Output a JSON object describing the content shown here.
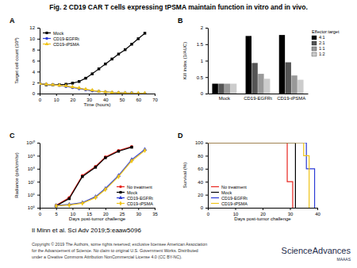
{
  "title": "Fig. 2 CD19 CAR T cells expressing tPSMA maintain function in vitro and in vivo.",
  "citation": "Il Minn et al. Sci Adv 2019;5:eaaw5096",
  "copyright": [
    "Copyright © 2019 The Authors, some rights reserved; exclusive licensee American Association",
    "for the Advancement of Science. No claim to original U.S. Government Works. Distributed",
    "under a Creative Commons Attribution NonCommercial License 4.0 (CC BY-NC)."
  ],
  "journal": "ScienceAdvances",
  "publisher": "MAAAS",
  "chart_data": [
    {
      "type": "line",
      "title": "A",
      "xlabel": "Time (hours)",
      "ylabel": "Target cell count (10⁴)",
      "x": [
        0,
        4,
        8,
        12,
        16,
        20,
        24,
        28,
        32,
        36,
        40,
        44,
        48,
        52,
        56,
        60,
        64
      ],
      "xlim": [
        0,
        70
      ],
      "xticks": [
        0,
        10,
        20,
        30,
        40,
        50,
        60,
        70
      ],
      "ylim": [
        0,
        12
      ],
      "yticks": [
        0,
        2,
        4,
        6,
        8,
        10,
        12
      ],
      "legend": "top-left",
      "series": [
        {
          "name": "Mock",
          "color": "#000000",
          "marker": "square",
          "values": [
            1.8,
            1.6,
            1.6,
            1.6,
            1.7,
            1.9,
            2.2,
            2.8,
            3.6,
            4.5,
            5.4,
            6.3,
            7.2,
            8.0,
            9.0,
            10.0,
            11.0
          ]
        },
        {
          "name": "CD19-EGFRt",
          "color": "#2a3ad6",
          "marker": "circle",
          "values": [
            1.8,
            1.7,
            1.6,
            1.5,
            1.3,
            1.1,
            0.9,
            0.7,
            0.5,
            0.4,
            0.3,
            0.2,
            0.15,
            0.1,
            0.1,
            0.05,
            0.05
          ]
        },
        {
          "name": "CD19-tPSMA",
          "color": "#f0c419",
          "marker": "triangle",
          "values": [
            1.8,
            1.7,
            1.6,
            1.5,
            1.4,
            1.2,
            1.0,
            0.8,
            0.6,
            0.4,
            0.3,
            0.2,
            0.15,
            0.1,
            0.05,
            0.05,
            0.05
          ]
        }
      ]
    },
    {
      "type": "bar",
      "title": "B",
      "ylabel": "Kill index (1/AUC)",
      "categories": [
        "Mock",
        "CD19-EGFRt",
        "CD19-tPSMA"
      ],
      "ylim": [
        0,
        2
      ],
      "yticks": [
        0,
        0.5,
        1,
        1.5,
        2
      ],
      "legend": "top-right",
      "annotations": [
        "Effector:target"
      ],
      "series": [
        {
          "name": "4:1",
          "color": "#000000",
          "values": [
            0.3,
            1.75,
            1.78
          ]
        },
        {
          "name": "2:1",
          "color": "#555555",
          "values": [
            0.3,
            0.93,
            0.95
          ]
        },
        {
          "name": "1:1",
          "color": "#999999",
          "values": [
            0.3,
            0.6,
            0.55
          ]
        },
        {
          "name": "1:2",
          "color": "#cccccc",
          "values": [
            0.3,
            0.45,
            0.42
          ]
        }
      ]
    },
    {
      "type": "line",
      "title": "C",
      "xlabel": "Days post-tumor challenge",
      "ylabel": "Radiance (p/s/cm²/sr)",
      "log": "y",
      "x": [
        5,
        9,
        13,
        17,
        20,
        24,
        28,
        32
      ],
      "xlim": [
        0,
        35
      ],
      "xticks": [
        0,
        5,
        10,
        15,
        20,
        25,
        30,
        35
      ],
      "ylim": [
        100000,
        10000000000
      ],
      "yticks": [
        {
          "value": 100000,
          "label": "10⁵"
        },
        {
          "value": 1000000,
          "label": "10⁶"
        },
        {
          "value": 10000000,
          "label": "10⁷"
        },
        {
          "value": 100000000,
          "label": "10⁸"
        },
        {
          "value": 1000000000,
          "label": "10⁹"
        },
        {
          "value": 10000000000,
          "label": "10¹⁰"
        }
      ],
      "legend": "bottom-right",
      "series": [
        {
          "name": "No treatment",
          "color": "#e8261f",
          "marker": "circle",
          "values": [
            150000,
            600000,
            30000000,
            150000000,
            800000000,
            2500000000,
            5000000000,
            null
          ]
        },
        {
          "name": "Mock",
          "color": "#000000",
          "marker": "square",
          "values": [
            140000,
            500000,
            25000000,
            130000000,
            700000000,
            2200000000,
            4500000000,
            null
          ]
        },
        {
          "name": "CD19-EGFRt",
          "color": "#2a3ad6",
          "marker": "triangle",
          "values": [
            150000,
            180000,
            250000,
            700000,
            3000000,
            30000000,
            500000000,
            3000000000
          ]
        },
        {
          "name": "CD19-tPSMA",
          "color": "#f0c419",
          "marker": "diamond",
          "values": [
            140000,
            160000,
            220000,
            600000,
            2500000,
            25000000,
            400000000,
            2500000000
          ]
        }
      ]
    },
    {
      "type": "step",
      "title": "D",
      "xlabel": "Days post-tumor challenge",
      "ylabel": "Survival (%)",
      "x": [
        0,
        29,
        31,
        32,
        35,
        36,
        37,
        39,
        40
      ],
      "xlim": [
        0,
        40
      ],
      "xticks": [
        0,
        10,
        20,
        30,
        40
      ],
      "ylim": [
        0,
        100
      ],
      "yticks": [
        0,
        20,
        40,
        60,
        80,
        100
      ],
      "legend": "bottom-left",
      "series": [
        {
          "name": "No treatment",
          "color": "#e8261f",
          "values": [
            100,
            40,
            0,
            null,
            null,
            null,
            null,
            null,
            null
          ]
        },
        {
          "name": "Mock",
          "color": "#000000",
          "values": [
            100,
            100,
            100,
            0,
            null,
            null,
            null,
            null,
            null
          ]
        },
        {
          "name": "CD19-EGFRt",
          "color": "#2a3ad6",
          "values": [
            100,
            100,
            100,
            100,
            100,
            60,
            60,
            0,
            null
          ]
        },
        {
          "name": "CD19-tPSMA",
          "color": "#f0c419",
          "values": [
            100,
            100,
            100,
            100,
            80,
            80,
            0,
            null,
            null
          ]
        }
      ]
    }
  ]
}
